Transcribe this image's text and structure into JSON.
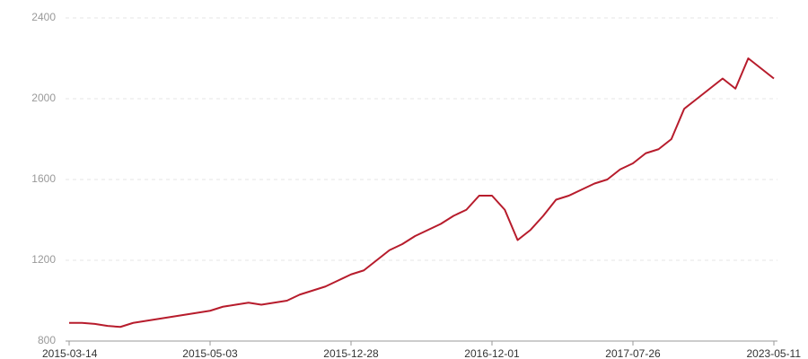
{
  "chart_data": {
    "type": "line",
    "categories": [
      "2015-03-14",
      null,
      null,
      null,
      null,
      null,
      null,
      null,
      null,
      null,
      null,
      "2015-05-03",
      null,
      null,
      null,
      null,
      null,
      null,
      null,
      null,
      null,
      null,
      "2015-12-28",
      null,
      null,
      null,
      null,
      null,
      null,
      null,
      null,
      null,
      null,
      "2016-12-01",
      null,
      null,
      null,
      null,
      null,
      null,
      null,
      null,
      null,
      null,
      "2017-07-26",
      null,
      null,
      null,
      null,
      null,
      null,
      null,
      null,
      null,
      null,
      "2023-05-11"
    ],
    "series": [
      {
        "color": "#b71c2c",
        "values": [
          890,
          890,
          885,
          875,
          870,
          890,
          900,
          910,
          920,
          930,
          940,
          950,
          970,
          980,
          990,
          980,
          990,
          1000,
          1030,
          1050,
          1070,
          1100,
          1130,
          1150,
          1200,
          1250,
          1280,
          1320,
          1350,
          1380,
          1420,
          1450,
          1520,
          1520,
          1450,
          1300,
          1350,
          1420,
          1500,
          1520,
          1550,
          1580,
          1600,
          1650,
          1680,
          1730,
          1750,
          1800,
          1950,
          2000,
          2050,
          2100,
          2050,
          2200,
          2150,
          2100
        ]
      }
    ],
    "ylim": [
      800,
      2400
    ],
    "yticks": [
      800,
      1200,
      1600,
      2000,
      2400
    ],
    "grid": true
  }
}
